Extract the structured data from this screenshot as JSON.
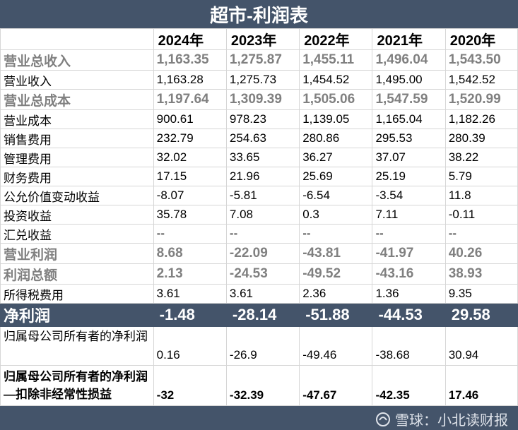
{
  "title": "超市-利润表",
  "years": [
    "2024年",
    "2023年",
    "2022年",
    "2021年",
    "2020年"
  ],
  "rows": [
    {
      "label": "营业总收入",
      "style": "major",
      "values": [
        "1,163.35",
        "1,275.87",
        "1,455.11",
        "1,496.04",
        "1,543.50"
      ]
    },
    {
      "label": "营业收入",
      "style": "normal",
      "values": [
        "1,163.28",
        "1,275.73",
        "1,454.52",
        "1,495.00",
        "1,542.52"
      ]
    },
    {
      "label": "营业总成本",
      "style": "major",
      "values": [
        "1,197.64",
        "1,309.39",
        "1,505.06",
        "1,547.59",
        "1,520.99"
      ]
    },
    {
      "label": "营业成本",
      "style": "normal",
      "values": [
        "900.61",
        "978.23",
        "1,139.05",
        "1,165.04",
        "1,182.26"
      ]
    },
    {
      "label": "销售费用",
      "style": "normal",
      "values": [
        "232.79",
        "254.63",
        "280.86",
        "295.53",
        "280.39"
      ]
    },
    {
      "label": "管理费用",
      "style": "normal",
      "values": [
        "32.02",
        "33.65",
        "36.27",
        "37.07",
        "38.22"
      ]
    },
    {
      "label": "财务费用",
      "style": "normal",
      "values": [
        "17.15",
        "21.96",
        "25.69",
        "25.19",
        "5.79"
      ]
    },
    {
      "label": "公允价值变动收益",
      "style": "normal",
      "values": [
        "-8.07",
        "-5.81",
        "-6.54",
        "-3.54",
        "11.8"
      ]
    },
    {
      "label": "投资收益",
      "style": "normal",
      "values": [
        "35.78",
        "7.08",
        "0.3",
        "7.11",
        "-0.11"
      ]
    },
    {
      "label": "汇兑收益",
      "style": "normal",
      "values": [
        "--",
        "--",
        "--",
        "--",
        "--"
      ]
    },
    {
      "label": "营业利润",
      "style": "major",
      "values": [
        "8.68",
        "-22.09",
        "-43.81",
        "-41.97",
        "40.26"
      ]
    },
    {
      "label": "利润总额",
      "style": "major",
      "values": [
        "2.13",
        "-24.53",
        "-49.52",
        "-43.16",
        "38.93"
      ]
    },
    {
      "label": "所得税费用",
      "style": "normal",
      "values": [
        "3.61",
        "3.61",
        "2.36",
        "1.36",
        "9.35"
      ]
    },
    {
      "label": "净利润",
      "style": "net",
      "values": [
        "-1.48",
        "-28.14",
        "-51.88",
        "-44.53",
        "29.58"
      ]
    },
    {
      "label": "归属母公司所有者的净利润",
      "style": "attr",
      "values": [
        "0.16",
        "-26.9",
        "-49.46",
        "-38.68",
        "30.94"
      ]
    },
    {
      "label": "归属母公司所有者的净利润—扣除非经常性损益",
      "style": "deduct",
      "values": [
        "-32",
        "-32.39",
        "-47.67",
        "-42.35",
        "17.46"
      ]
    }
  ],
  "watermark": "雪球：小北读财报"
}
